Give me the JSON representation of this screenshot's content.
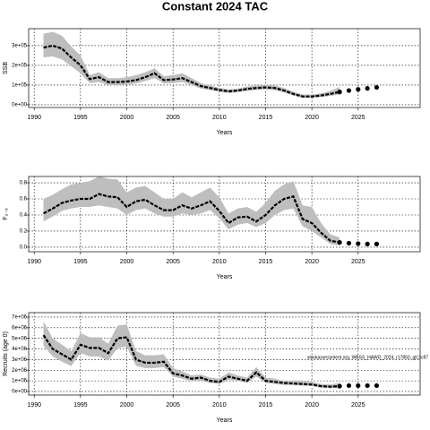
{
  "chart_data": [
    {
      "type": "line",
      "title": "Constant 2024 TAC",
      "ylabel": "SSB",
      "xlabel": "Years",
      "x": [
        1991,
        1992,
        1993,
        1994,
        1995,
        1996,
        1997,
        1998,
        1999,
        2000,
        2001,
        2002,
        2003,
        2004,
        2005,
        2006,
        2007,
        2008,
        2009,
        2010,
        2011,
        2012,
        2013,
        2014,
        2015,
        2016,
        2017,
        2018,
        2019,
        2020,
        2021,
        2022,
        2023
      ],
      "values": [
        290000,
        300000,
        285000,
        240000,
        200000,
        130000,
        140000,
        115000,
        115000,
        118000,
        125000,
        140000,
        160000,
        125000,
        128000,
        135000,
        115000,
        95000,
        85000,
        75000,
        68000,
        72000,
        80000,
        85000,
        88000,
        85000,
        72000,
        55000,
        42000,
        42000,
        47000,
        55000,
        65000
      ],
      "lower": [
        240000,
        245000,
        230000,
        195000,
        160000,
        110000,
        115000,
        100000,
        100000,
        102000,
        108000,
        120000,
        135000,
        108000,
        110000,
        115000,
        100000,
        82000,
        74000,
        65000,
        60000,
        64000,
        70000,
        75000,
        77000,
        74000,
        62000,
        46000,
        35000,
        35000,
        39000,
        45000,
        52000
      ],
      "upper": [
        360000,
        370000,
        350000,
        295000,
        250000,
        150000,
        165000,
        135000,
        135000,
        140000,
        150000,
        165000,
        185000,
        145000,
        150000,
        160000,
        135000,
        110000,
        98000,
        86000,
        78000,
        82000,
        92000,
        98000,
        100000,
        98000,
        85000,
        66000,
        52000,
        52000,
        58000,
        70000,
        90000
      ],
      "projection_x": [
        2023,
        2024,
        2025,
        2026,
        2027
      ],
      "projection_values": [
        65000,
        72000,
        78000,
        83000,
        88000
      ],
      "color": "#000000",
      "band_color": "#bebebe",
      "xlim": [
        1989.4,
        2031.7
      ],
      "xticks": [
        1990,
        1995,
        2000,
        2005,
        2010,
        2015,
        2020,
        2025
      ],
      "ylim": [
        -14000,
        386000
      ],
      "yticks": [
        {
          "value": 0,
          "label": "0e+00"
        },
        {
          "value": 100000,
          "label": "1e+05"
        },
        {
          "value": 200000,
          "label": "2e+05"
        },
        {
          "value": 300000,
          "label": "3e+05"
        }
      ],
      "grid": true
    },
    {
      "type": "line",
      "ylabel": "F₂₋₆",
      "xlabel": "Years",
      "x": [
        1991,
        1992,
        1993,
        1994,
        1995,
        1996,
        1997,
        1998,
        1999,
        2000,
        2001,
        2002,
        2003,
        2004,
        2005,
        2006,
        2007,
        2008,
        2009,
        2010,
        2011,
        2012,
        2013,
        2014,
        2015,
        2016,
        2017,
        2018,
        2019,
        2020,
        2021,
        2022,
        2023
      ],
      "values": [
        0.42,
        0.48,
        0.55,
        0.58,
        0.6,
        0.6,
        0.66,
        0.63,
        0.62,
        0.5,
        0.57,
        0.59,
        0.52,
        0.46,
        0.46,
        0.52,
        0.48,
        0.52,
        0.57,
        0.45,
        0.3,
        0.37,
        0.38,
        0.32,
        0.4,
        0.52,
        0.6,
        0.63,
        0.35,
        0.3,
        0.18,
        0.08,
        0.06
      ],
      "lower": [
        0.32,
        0.38,
        0.45,
        0.48,
        0.5,
        0.5,
        0.52,
        0.5,
        0.48,
        0.4,
        0.46,
        0.48,
        0.42,
        0.38,
        0.38,
        0.42,
        0.4,
        0.42,
        0.46,
        0.36,
        0.22,
        0.28,
        0.3,
        0.25,
        0.3,
        0.4,
        0.46,
        0.48,
        0.26,
        0.2,
        0.12,
        0.04,
        0.02
      ],
      "upper": [
        0.6,
        0.65,
        0.72,
        0.78,
        0.8,
        0.82,
        0.88,
        0.85,
        0.84,
        0.68,
        0.74,
        0.76,
        0.68,
        0.6,
        0.6,
        0.68,
        0.62,
        0.68,
        0.74,
        0.62,
        0.42,
        0.48,
        0.5,
        0.44,
        0.55,
        0.7,
        0.78,
        0.82,
        0.52,
        0.5,
        0.3,
        0.16,
        0.12
      ],
      "projection_x": [
        2023,
        2024,
        2025,
        2026,
        2027
      ],
      "projection_values": [
        0.06,
        0.05,
        0.045,
        0.04,
        0.04
      ],
      "color": "#000000",
      "band_color": "#bebebe",
      "xlim": [
        1989.4,
        2031.7
      ],
      "xticks": [
        1990,
        1995,
        2000,
        2005,
        2010,
        2015,
        2020,
        2025
      ],
      "ylim": [
        -0.056,
        0.878
      ],
      "yticks": [
        {
          "value": 0,
          "label": "0.0"
        },
        0.2,
        0.4,
        0.6,
        0.8
      ],
      "grid": true
    },
    {
      "type": "line",
      "ylabel": "Recruits (age 0)",
      "xlabel": "Years",
      "annotation": "stockassessment.org, WBSS_HAWG_2024, r17850, git:3c87",
      "x": [
        1991,
        1992,
        1993,
        1994,
        1995,
        1996,
        1997,
        1998,
        1999,
        2000,
        2001,
        2002,
        2003,
        2004,
        2005,
        2006,
        2007,
        2008,
        2009,
        2010,
        2011,
        2012,
        2013,
        2014,
        2015,
        2016,
        2017,
        2018,
        2019,
        2020,
        2021,
        2022,
        2023
      ],
      "values": [
        5300000,
        4000000,
        3500000,
        3000000,
        4400000,
        4100000,
        4100000,
        3600000,
        5000000,
        5100000,
        3000000,
        2700000,
        2700000,
        2800000,
        1700000,
        1500000,
        1200000,
        1300000,
        1000000,
        900000,
        1400000,
        1200000,
        1000000,
        1800000,
        1000000,
        900000,
        800000,
        750000,
        700000,
        650000,
        500000,
        450000,
        500000
      ],
      "lower": [
        4300000,
        3300000,
        2800000,
        2400000,
        3600000,
        3300000,
        3300000,
        2900000,
        4100000,
        4200000,
        2400000,
        2200000,
        2200000,
        2300000,
        1400000,
        1200000,
        1000000,
        1000000,
        800000,
        700000,
        1100000,
        1000000,
        800000,
        1400000,
        800000,
        700000,
        600000,
        600000,
        550000,
        500000,
        350000,
        300000,
        300000
      ],
      "upper": [
        6600000,
        5000000,
        4400000,
        3800000,
        5500000,
        5100000,
        5100000,
        4500000,
        6200000,
        6300000,
        3800000,
        3400000,
        3400000,
        3500000,
        2200000,
        1900000,
        1500000,
        1600000,
        1300000,
        1200000,
        1800000,
        1500000,
        1300000,
        2300000,
        1300000,
        1200000,
        1000000,
        1000000,
        950000,
        900000,
        700000,
        650000,
        800000
      ],
      "projection_x": [
        2023,
        2024,
        2025,
        2026,
        2027
      ],
      "projection_values": [
        500000,
        550000,
        550000,
        550000,
        550000
      ],
      "color": "#000000",
      "band_color": "#bebebe",
      "xlim": [
        1989.4,
        2031.7
      ],
      "xticks": [
        1990,
        1995,
        2000,
        2005,
        2010,
        2015,
        2020,
        2025
      ],
      "ylim": [
        -340000,
        7420000
      ],
      "yticks": [
        {
          "value": 0,
          "label": "0e+00"
        },
        {
          "value": 1000000,
          "label": "1e+06"
        },
        {
          "value": 2000000,
          "label": "2e+06"
        },
        {
          "value": 3000000,
          "label": "3e+06"
        },
        {
          "value": 4000000,
          "label": "4e+06"
        },
        {
          "value": 5000000,
          "label": "5e+06"
        },
        {
          "value": 6000000,
          "label": "6e+06"
        },
        {
          "value": 7000000,
          "label": "7e+06"
        }
      ],
      "grid": true
    }
  ]
}
